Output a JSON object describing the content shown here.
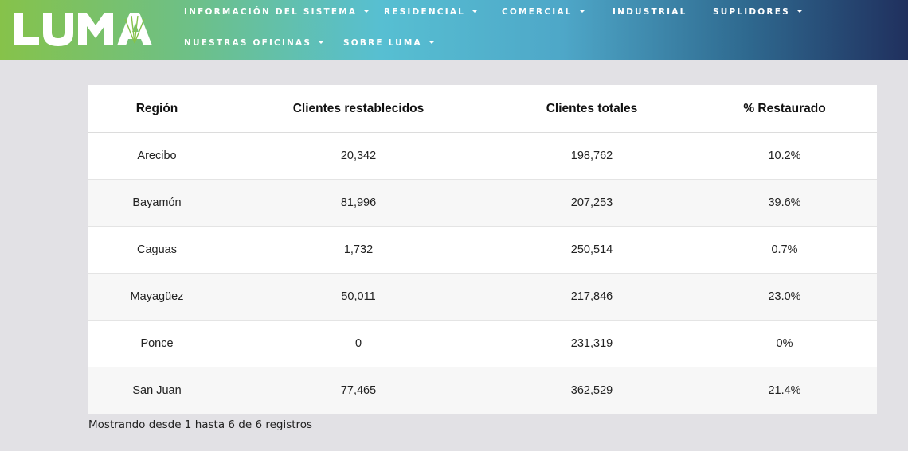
{
  "logo": {
    "text": "LUMA"
  },
  "nav": {
    "row1": [
      {
        "label": "INFORMACIÓN DEL SISTEMA",
        "dropdown": true
      },
      {
        "label": "RESIDENCIAL",
        "dropdown": true
      },
      {
        "label": "COMERCIAL",
        "dropdown": true
      },
      {
        "label": "INDUSTRIAL",
        "dropdown": false
      },
      {
        "label": "SUPLIDORES",
        "dropdown": true
      }
    ],
    "row2": [
      {
        "label": "NUESTRAS OFICINAS",
        "dropdown": true
      },
      {
        "label": "SOBRE LUMA",
        "dropdown": true
      }
    ]
  },
  "table": {
    "headers": [
      "Región",
      "Clientes restablecidos",
      "Clientes totales",
      "% Restaurado"
    ],
    "rows": [
      [
        "Arecibo",
        "20,342",
        "198,762",
        "10.2%"
      ],
      [
        "Bayamón",
        "81,996",
        "207,253",
        "39.6%"
      ],
      [
        "Caguas",
        "1,732",
        "250,514",
        "0.7%"
      ],
      [
        "Mayagüez",
        "50,011",
        "217,846",
        "23.0%"
      ],
      [
        "Ponce",
        "0",
        "231,319",
        "0%"
      ],
      [
        "San Juan",
        "77,465",
        "362,529",
        "21.4%"
      ]
    ]
  },
  "footer": {
    "info": "Mostrando desde 1 hasta 6 de 6 registros"
  },
  "colors": {
    "header_gradient": [
      "#86c24a",
      "#57bfd2",
      "#20305e"
    ],
    "page_background": "#e2e1e5",
    "row_stripe": "#f7f7f7"
  }
}
